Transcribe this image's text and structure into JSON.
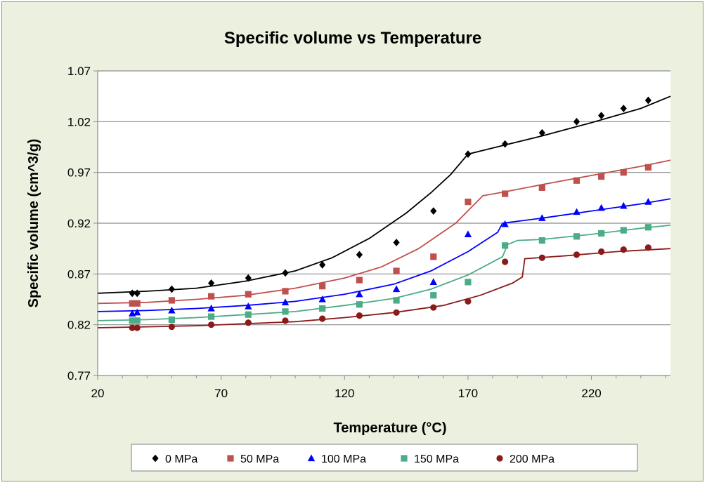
{
  "chart_data": {
    "type": "scatter",
    "title": "Specific volume vs Temperature",
    "xlabel": "Temperature (°C)",
    "ylabel": "Specific volume (cm^3/g)",
    "xlim": [
      20,
      252
    ],
    "ylim": [
      0.77,
      1.07
    ],
    "xticks": [
      20,
      70,
      120,
      170,
      220
    ],
    "yticks": [
      0.77,
      0.82,
      0.87,
      0.92,
      0.97,
      1.02,
      1.07
    ],
    "ytick_labels": [
      "0.77",
      "0.82",
      "0.87",
      "0.92",
      "0.97",
      "1.02",
      "1.07"
    ],
    "grid": "horizontal",
    "legend_position": "bottom",
    "series": [
      {
        "name": "0 MPa",
        "color": "#000000",
        "marker": "diamond",
        "points": [
          [
            34,
            0.851
          ],
          [
            36,
            0.851
          ],
          [
            50,
            0.855
          ],
          [
            66,
            0.861
          ],
          [
            81,
            0.866
          ],
          [
            96,
            0.871
          ],
          [
            111,
            0.879
          ],
          [
            126,
            0.889
          ],
          [
            141,
            0.901
          ],
          [
            156,
            0.932
          ],
          [
            170,
            0.988
          ],
          [
            185,
            0.998
          ],
          [
            200,
            1.009
          ],
          [
            214,
            1.02
          ],
          [
            224,
            1.026
          ],
          [
            233,
            1.033
          ],
          [
            243,
            1.041
          ]
        ],
        "fit": [
          [
            20,
            0.851
          ],
          [
            40,
            0.853
          ],
          [
            60,
            0.856
          ],
          [
            80,
            0.863
          ],
          [
            100,
            0.873
          ],
          [
            115,
            0.886
          ],
          [
            130,
            0.905
          ],
          [
            145,
            0.93
          ],
          [
            155,
            0.95
          ],
          [
            163,
            0.968
          ],
          [
            170,
            0.988
          ],
          [
            180,
            0.994
          ],
          [
            200,
            1.006
          ],
          [
            220,
            1.019
          ],
          [
            240,
            1.033
          ],
          [
            252,
            1.045
          ]
        ]
      },
      {
        "name": "50 MPa",
        "color": "#c0504d",
        "marker": "square",
        "points": [
          [
            34,
            0.841
          ],
          [
            36,
            0.841
          ],
          [
            50,
            0.844
          ],
          [
            66,
            0.848
          ],
          [
            81,
            0.85
          ],
          [
            96,
            0.853
          ],
          [
            111,
            0.858
          ],
          [
            126,
            0.864
          ],
          [
            141,
            0.873
          ],
          [
            156,
            0.887
          ],
          [
            170,
            0.941
          ],
          [
            185,
            0.949
          ],
          [
            200,
            0.955
          ],
          [
            214,
            0.962
          ],
          [
            224,
            0.966
          ],
          [
            233,
            0.97
          ],
          [
            243,
            0.975
          ]
        ],
        "fit": [
          [
            20,
            0.841
          ],
          [
            40,
            0.842
          ],
          [
            60,
            0.845
          ],
          [
            80,
            0.849
          ],
          [
            100,
            0.856
          ],
          [
            120,
            0.866
          ],
          [
            135,
            0.877
          ],
          [
            150,
            0.895
          ],
          [
            165,
            0.92
          ],
          [
            176,
            0.947
          ],
          [
            185,
            0.951
          ],
          [
            200,
            0.958
          ],
          [
            220,
            0.967
          ],
          [
            240,
            0.976
          ],
          [
            252,
            0.982
          ]
        ]
      },
      {
        "name": "100 MPa",
        "color": "#0000ff",
        "marker": "triangle",
        "points": [
          [
            34,
            0.831
          ],
          [
            36,
            0.832
          ],
          [
            50,
            0.834
          ],
          [
            66,
            0.836
          ],
          [
            81,
            0.838
          ],
          [
            96,
            0.842
          ],
          [
            111,
            0.845
          ],
          [
            126,
            0.85
          ],
          [
            141,
            0.855
          ],
          [
            156,
            0.862
          ],
          [
            170,
            0.909
          ],
          [
            185,
            0.919
          ],
          [
            200,
            0.925
          ],
          [
            214,
            0.931
          ],
          [
            224,
            0.935
          ],
          [
            233,
            0.937
          ],
          [
            243,
            0.941
          ]
        ],
        "fit": [
          [
            20,
            0.833
          ],
          [
            40,
            0.834
          ],
          [
            60,
            0.836
          ],
          [
            80,
            0.839
          ],
          [
            100,
            0.843
          ],
          [
            120,
            0.85
          ],
          [
            140,
            0.86
          ],
          [
            155,
            0.873
          ],
          [
            170,
            0.892
          ],
          [
            182,
            0.911
          ],
          [
            184,
            0.92
          ],
          [
            200,
            0.925
          ],
          [
            220,
            0.932
          ],
          [
            240,
            0.939
          ],
          [
            252,
            0.944
          ]
        ]
      },
      {
        "name": "150 MPa",
        "color": "#4bac86",
        "marker": "square",
        "points": [
          [
            34,
            0.824
          ],
          [
            36,
            0.824
          ],
          [
            50,
            0.825
          ],
          [
            66,
            0.828
          ],
          [
            81,
            0.83
          ],
          [
            96,
            0.833
          ],
          [
            111,
            0.836
          ],
          [
            126,
            0.84
          ],
          [
            141,
            0.844
          ],
          [
            156,
            0.849
          ],
          [
            170,
            0.862
          ],
          [
            185,
            0.898
          ],
          [
            200,
            0.903
          ],
          [
            214,
            0.907
          ],
          [
            224,
            0.91
          ],
          [
            233,
            0.913
          ],
          [
            243,
            0.916
          ]
        ],
        "fit": [
          [
            20,
            0.824
          ],
          [
            40,
            0.825
          ],
          [
            60,
            0.827
          ],
          [
            80,
            0.83
          ],
          [
            100,
            0.833
          ],
          [
            120,
            0.839
          ],
          [
            140,
            0.846
          ],
          [
            155,
            0.855
          ],
          [
            170,
            0.869
          ],
          [
            184,
            0.887
          ],
          [
            186,
            0.899
          ],
          [
            190,
            0.903
          ],
          [
            200,
            0.904
          ],
          [
            220,
            0.909
          ],
          [
            240,
            0.915
          ],
          [
            252,
            0.918
          ]
        ]
      },
      {
        "name": "200 MPa",
        "color": "#8b1a1a",
        "marker": "circle",
        "points": [
          [
            34,
            0.817
          ],
          [
            36,
            0.817
          ],
          [
            50,
            0.818
          ],
          [
            66,
            0.82
          ],
          [
            81,
            0.822
          ],
          [
            96,
            0.824
          ],
          [
            111,
            0.826
          ],
          [
            126,
            0.829
          ],
          [
            141,
            0.832
          ],
          [
            156,
            0.837
          ],
          [
            170,
            0.843
          ],
          [
            185,
            0.882
          ],
          [
            200,
            0.886
          ],
          [
            214,
            0.889
          ],
          [
            224,
            0.892
          ],
          [
            233,
            0.894
          ],
          [
            243,
            0.896
          ]
        ],
        "fit": [
          [
            20,
            0.817
          ],
          [
            40,
            0.818
          ],
          [
            60,
            0.819
          ],
          [
            80,
            0.821
          ],
          [
            100,
            0.823
          ],
          [
            120,
            0.827
          ],
          [
            140,
            0.832
          ],
          [
            160,
            0.839
          ],
          [
            175,
            0.849
          ],
          [
            188,
            0.861
          ],
          [
            192,
            0.867
          ],
          [
            193,
            0.885
          ],
          [
            210,
            0.888
          ],
          [
            230,
            0.892
          ],
          [
            252,
            0.895
          ]
        ]
      }
    ]
  }
}
